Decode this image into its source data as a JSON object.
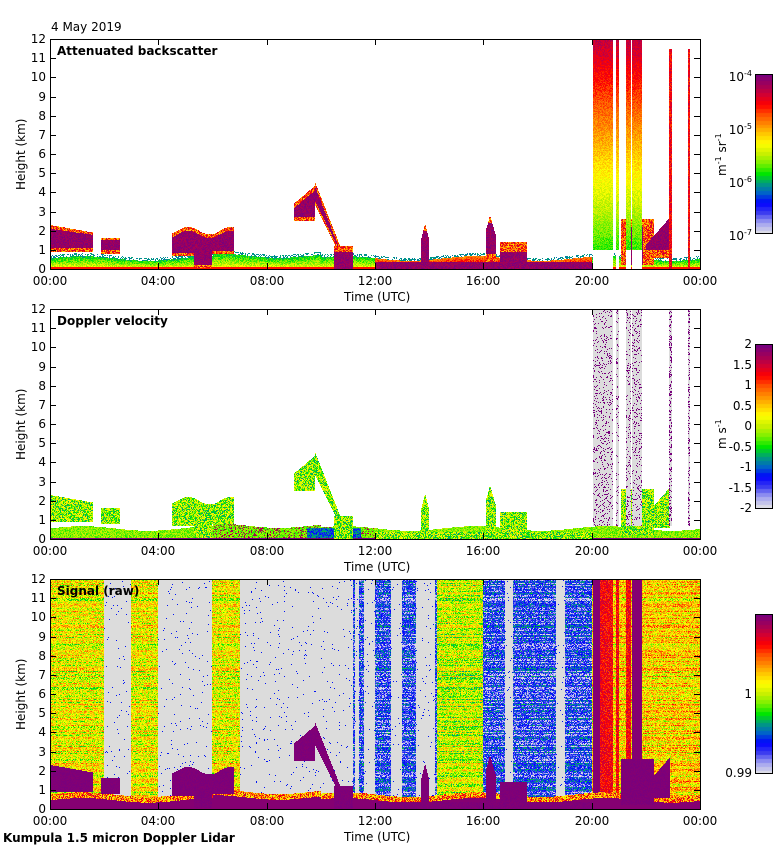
{
  "header": {
    "date": "4 May 2019"
  },
  "footer": {
    "instrument": "Kumpula 1.5 micron Doppler Lidar"
  },
  "chart_data": [
    {
      "type": "heatmap",
      "title": "Attenuated backscatter",
      "xlabel": "Time (UTC)",
      "ylabel": "Height (km)",
      "x_ticks": [
        "00:00",
        "04:00",
        "08:00",
        "12:00",
        "16:00",
        "20:00",
        "00:00"
      ],
      "x_range_hours": [
        0,
        24
      ],
      "y_ticks": [
        0,
        1,
        2,
        3,
        4,
        5,
        6,
        7,
        8,
        9,
        10,
        11,
        12
      ],
      "ylim": [
        0,
        12
      ],
      "colorbar": {
        "scale": "log",
        "range": [
          1e-07,
          0.0001
        ],
        "ticks": [
          {
            "base": "10",
            "exp": "-4",
            "value": 0.0001
          },
          {
            "base": "10",
            "exp": "-5",
            "value": 1e-05
          },
          {
            "base": "10",
            "exp": "-6",
            "value": 1e-06
          },
          {
            "base": "10",
            "exp": "-7",
            "value": 1e-07
          }
        ],
        "unit_parts": [
          {
            "t": "m",
            "sup": "-1"
          },
          {
            "t": " sr",
            "sup": "-1"
          }
        ]
      },
      "features": [
        {
          "desc": "boundary layer aerosol",
          "t_start": 0,
          "t_end": 24,
          "top_km": 0.7
        },
        {
          "desc": "low cloud",
          "t_start": 0.0,
          "t_end": 1.6,
          "top_km": 2.0
        },
        {
          "desc": "low cloud",
          "t_start": 1.9,
          "t_end": 2.6,
          "top_km": 1.6
        },
        {
          "desc": "low cloud",
          "t_start": 4.5,
          "t_end": 6.8,
          "top_km": 2.2
        },
        {
          "desc": "descending cloud layer",
          "t_start": 9.0,
          "t_end": 11.0,
          "top_km": 4.5
        },
        {
          "desc": "convective plume",
          "t_start": 13.7,
          "t_end": 14.0,
          "top_km": 2.4
        },
        {
          "desc": "convective plume",
          "t_start": 16.1,
          "t_end": 16.4,
          "top_km": 2.8
        },
        {
          "desc": "precipitation",
          "t_start": 20.0,
          "t_end": 21.5,
          "top_km": 12.0
        },
        {
          "desc": "low cloud",
          "t_start": 21.3,
          "t_end": 23.0,
          "top_km": 2.8
        }
      ]
    },
    {
      "type": "heatmap",
      "title": "Doppler velocity",
      "xlabel": "Time (UTC)",
      "ylabel": "Height (km)",
      "x_ticks": [
        "00:00",
        "04:00",
        "08:00",
        "12:00",
        "16:00",
        "20:00",
        "00:00"
      ],
      "x_range_hours": [
        0,
        24
      ],
      "y_ticks": [
        0,
        1,
        2,
        3,
        4,
        5,
        6,
        7,
        8,
        9,
        10,
        11,
        12
      ],
      "ylim": [
        0,
        12
      ],
      "colorbar": {
        "scale": "linear",
        "range": [
          -2,
          2
        ],
        "ticks": [
          {
            "label": "2",
            "value": 2
          },
          {
            "label": "1.5",
            "value": 1.5
          },
          {
            "label": "1",
            "value": 1
          },
          {
            "label": "0.5",
            "value": 0.5
          },
          {
            "label": "0",
            "value": 0
          },
          {
            "label": "-0.5",
            "value": -0.5
          },
          {
            "label": "-1",
            "value": -1
          },
          {
            "label": "-1.5",
            "value": -1.5
          },
          {
            "label": "-2",
            "value": -2
          }
        ],
        "unit_parts": [
          {
            "t": "m s",
            "sup": "-1"
          }
        ]
      }
    },
    {
      "type": "heatmap",
      "title": "Signal (raw)",
      "xlabel": "Time (UTC)",
      "ylabel": "Height (km)",
      "x_ticks": [
        "00:00",
        "04:00",
        "08:00",
        "12:00",
        "16:00",
        "20:00",
        "00:00"
      ],
      "x_range_hours": [
        0,
        24
      ],
      "y_ticks": [
        0,
        1,
        2,
        3,
        4,
        5,
        6,
        7,
        8,
        9,
        10,
        11,
        12
      ],
      "ylim": [
        0,
        12
      ],
      "colorbar": {
        "scale": "linear",
        "range": [
          0.99,
          1.01
        ],
        "ticks": [
          {
            "label": "1",
            "value": 1
          },
          {
            "label": "0.99",
            "value": 0.99
          }
        ],
        "unit_parts": []
      }
    }
  ],
  "colors": {
    "missing": "#dcdcdc",
    "frame": "#000000",
    "colormap": [
      "#dcdce6",
      "#a0a0f0",
      "#3c3cf0",
      "#0000ff",
      "#0064c8",
      "#00a078",
      "#00e600",
      "#78f000",
      "#c8f000",
      "#ffff00",
      "#ffc800",
      "#ff8c00",
      "#ff5000",
      "#ff0000",
      "#d20032",
      "#a0005a",
      "#78007d"
    ]
  }
}
